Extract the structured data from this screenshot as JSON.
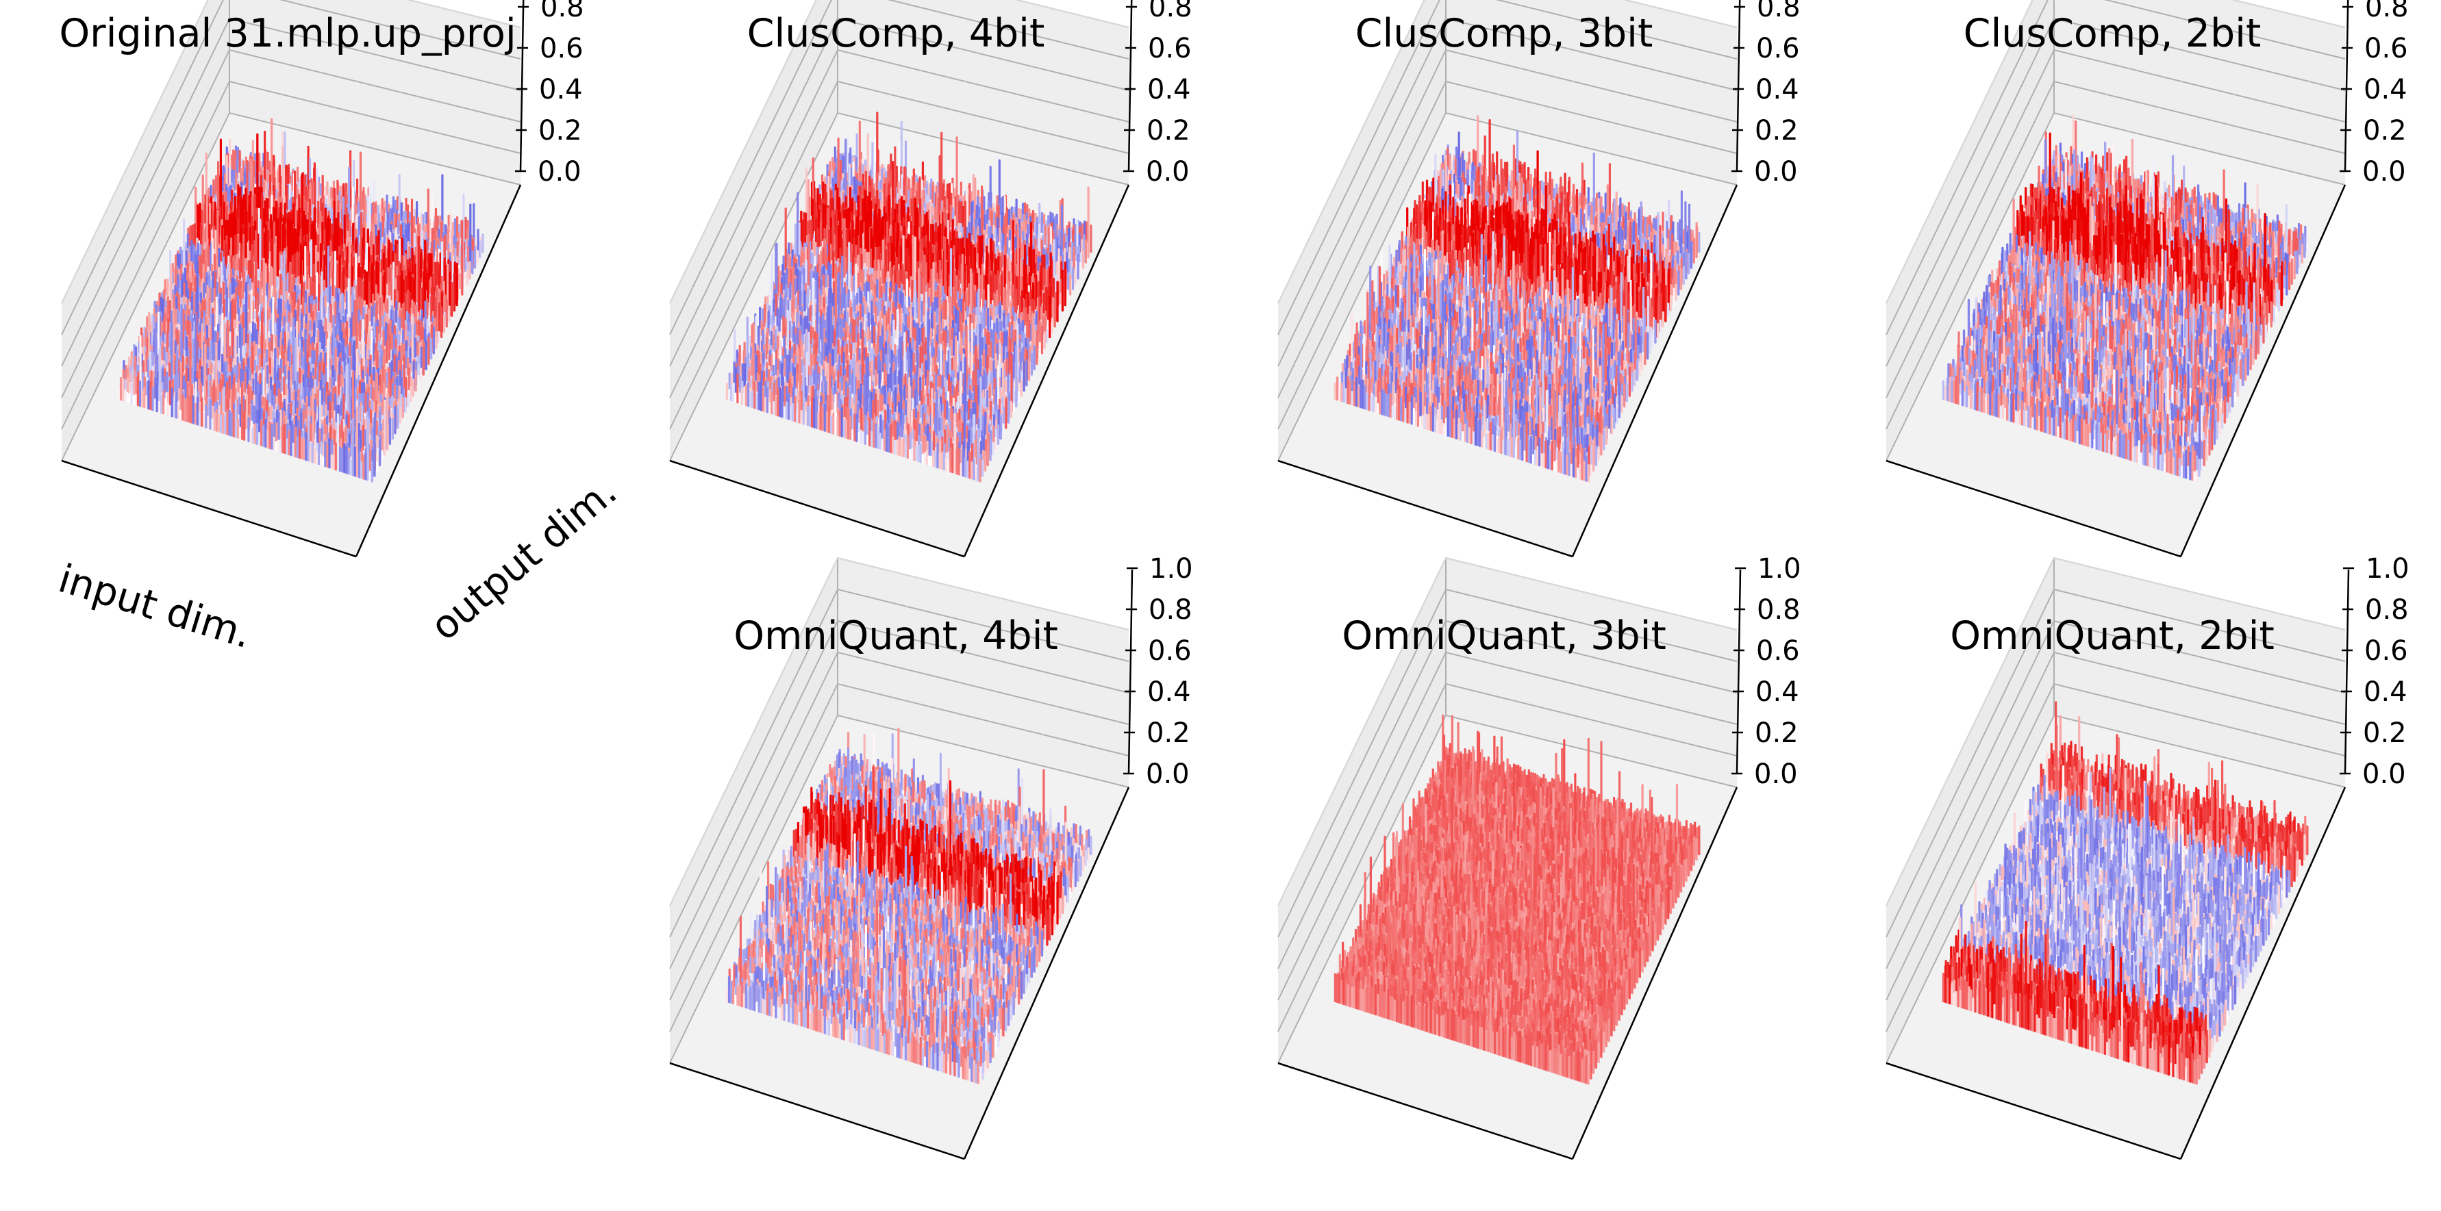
{
  "figure": {
    "panels": [
      {
        "id": "original",
        "title": "Original 31.mlp.up_proj",
        "pattern": "original",
        "seed": 11,
        "show_axis_labels": true
      },
      {
        "id": "cluscomp-4bit",
        "title": "ClusComp, 4bit",
        "pattern": "original",
        "seed": 23,
        "show_axis_labels": false
      },
      {
        "id": "cluscomp-3bit",
        "title": "ClusComp, 3bit",
        "pattern": "original",
        "seed": 37,
        "show_axis_labels": false
      },
      {
        "id": "cluscomp-2bit",
        "title": "ClusComp, 2bit",
        "pattern": "original",
        "seed": 41,
        "show_axis_labels": false
      },
      {
        "id": "omniquant-4bit",
        "title": "OmniQuant, 4bit",
        "pattern": "omni4",
        "seed": 53,
        "show_axis_labels": false
      },
      {
        "id": "omniquant-3bit",
        "title": "OmniQuant, 3bit",
        "pattern": "omni3",
        "seed": 67,
        "show_axis_labels": false
      },
      {
        "id": "omniquant-2bit",
        "title": "OmniQuant, 2bit",
        "pattern": "omni2",
        "seed": 79,
        "show_axis_labels": false
      }
    ],
    "axis_labels": {
      "x": "input dim.",
      "y": "output dim."
    },
    "colors": {
      "positive": "#e80000",
      "negative": "#1a1ad8",
      "pane": "#f2f2f2",
      "grid": "#b0b0b0"
    }
  },
  "chart_data": {
    "type": "surface3d",
    "title": "Original 31.mlp.up_proj",
    "xlabel": "input dim.",
    "ylabel": "output dim.",
    "zlabel": "",
    "zlim": [
      0.0,
      1.0
    ],
    "zticks": [
      "0.0",
      "0.2",
      "0.4",
      "0.6",
      "0.8",
      "1.0"
    ],
    "colormap": "bwr",
    "panels": [
      "Original 31.mlp.up_proj",
      "ClusComp, 4bit",
      "ClusComp, 3bit",
      "ClusComp, 2bit",
      "OmniQuant, 4bit",
      "OmniQuant, 3bit",
      "OmniQuant, 2bit"
    ]
  }
}
